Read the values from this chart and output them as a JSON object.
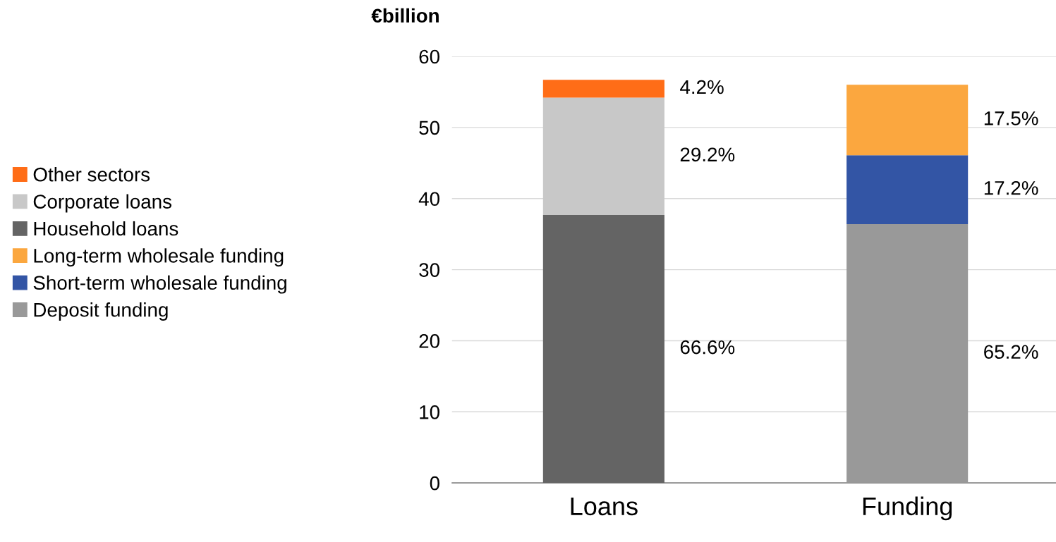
{
  "chart_data": {
    "type": "bar",
    "stacked": true,
    "ylabel": "€billion",
    "categories": [
      "Loans",
      "Funding"
    ],
    "series": [
      {
        "name": "Deposit funding",
        "color": "#999999",
        "values": [
          null,
          36.4
        ]
      },
      {
        "name": "Short-term wholesale funding",
        "color": "#3355a5",
        "values": [
          null,
          9.7
        ]
      },
      {
        "name": "Long-term wholesale funding",
        "color": "#fba73f",
        "values": [
          null,
          9.9
        ]
      },
      {
        "name": "Household loans",
        "color": "#646464",
        "values": [
          37.7,
          null
        ]
      },
      {
        "name": "Corporate loans",
        "color": "#c8c8c8",
        "values": [
          16.5,
          null
        ]
      },
      {
        "name": "Other sectors",
        "color": "#ff6d17",
        "values": [
          2.5,
          null
        ]
      }
    ],
    "annotations": [
      "65.2%",
      "17.2%",
      "17.5%",
      "66.6%",
      "29.2%",
      "4.2%"
    ],
    "ylim": [
      0,
      60
    ],
    "yticks": [
      0,
      10,
      20,
      30,
      40,
      50,
      60
    ],
    "grid": "y",
    "legend": "left"
  }
}
